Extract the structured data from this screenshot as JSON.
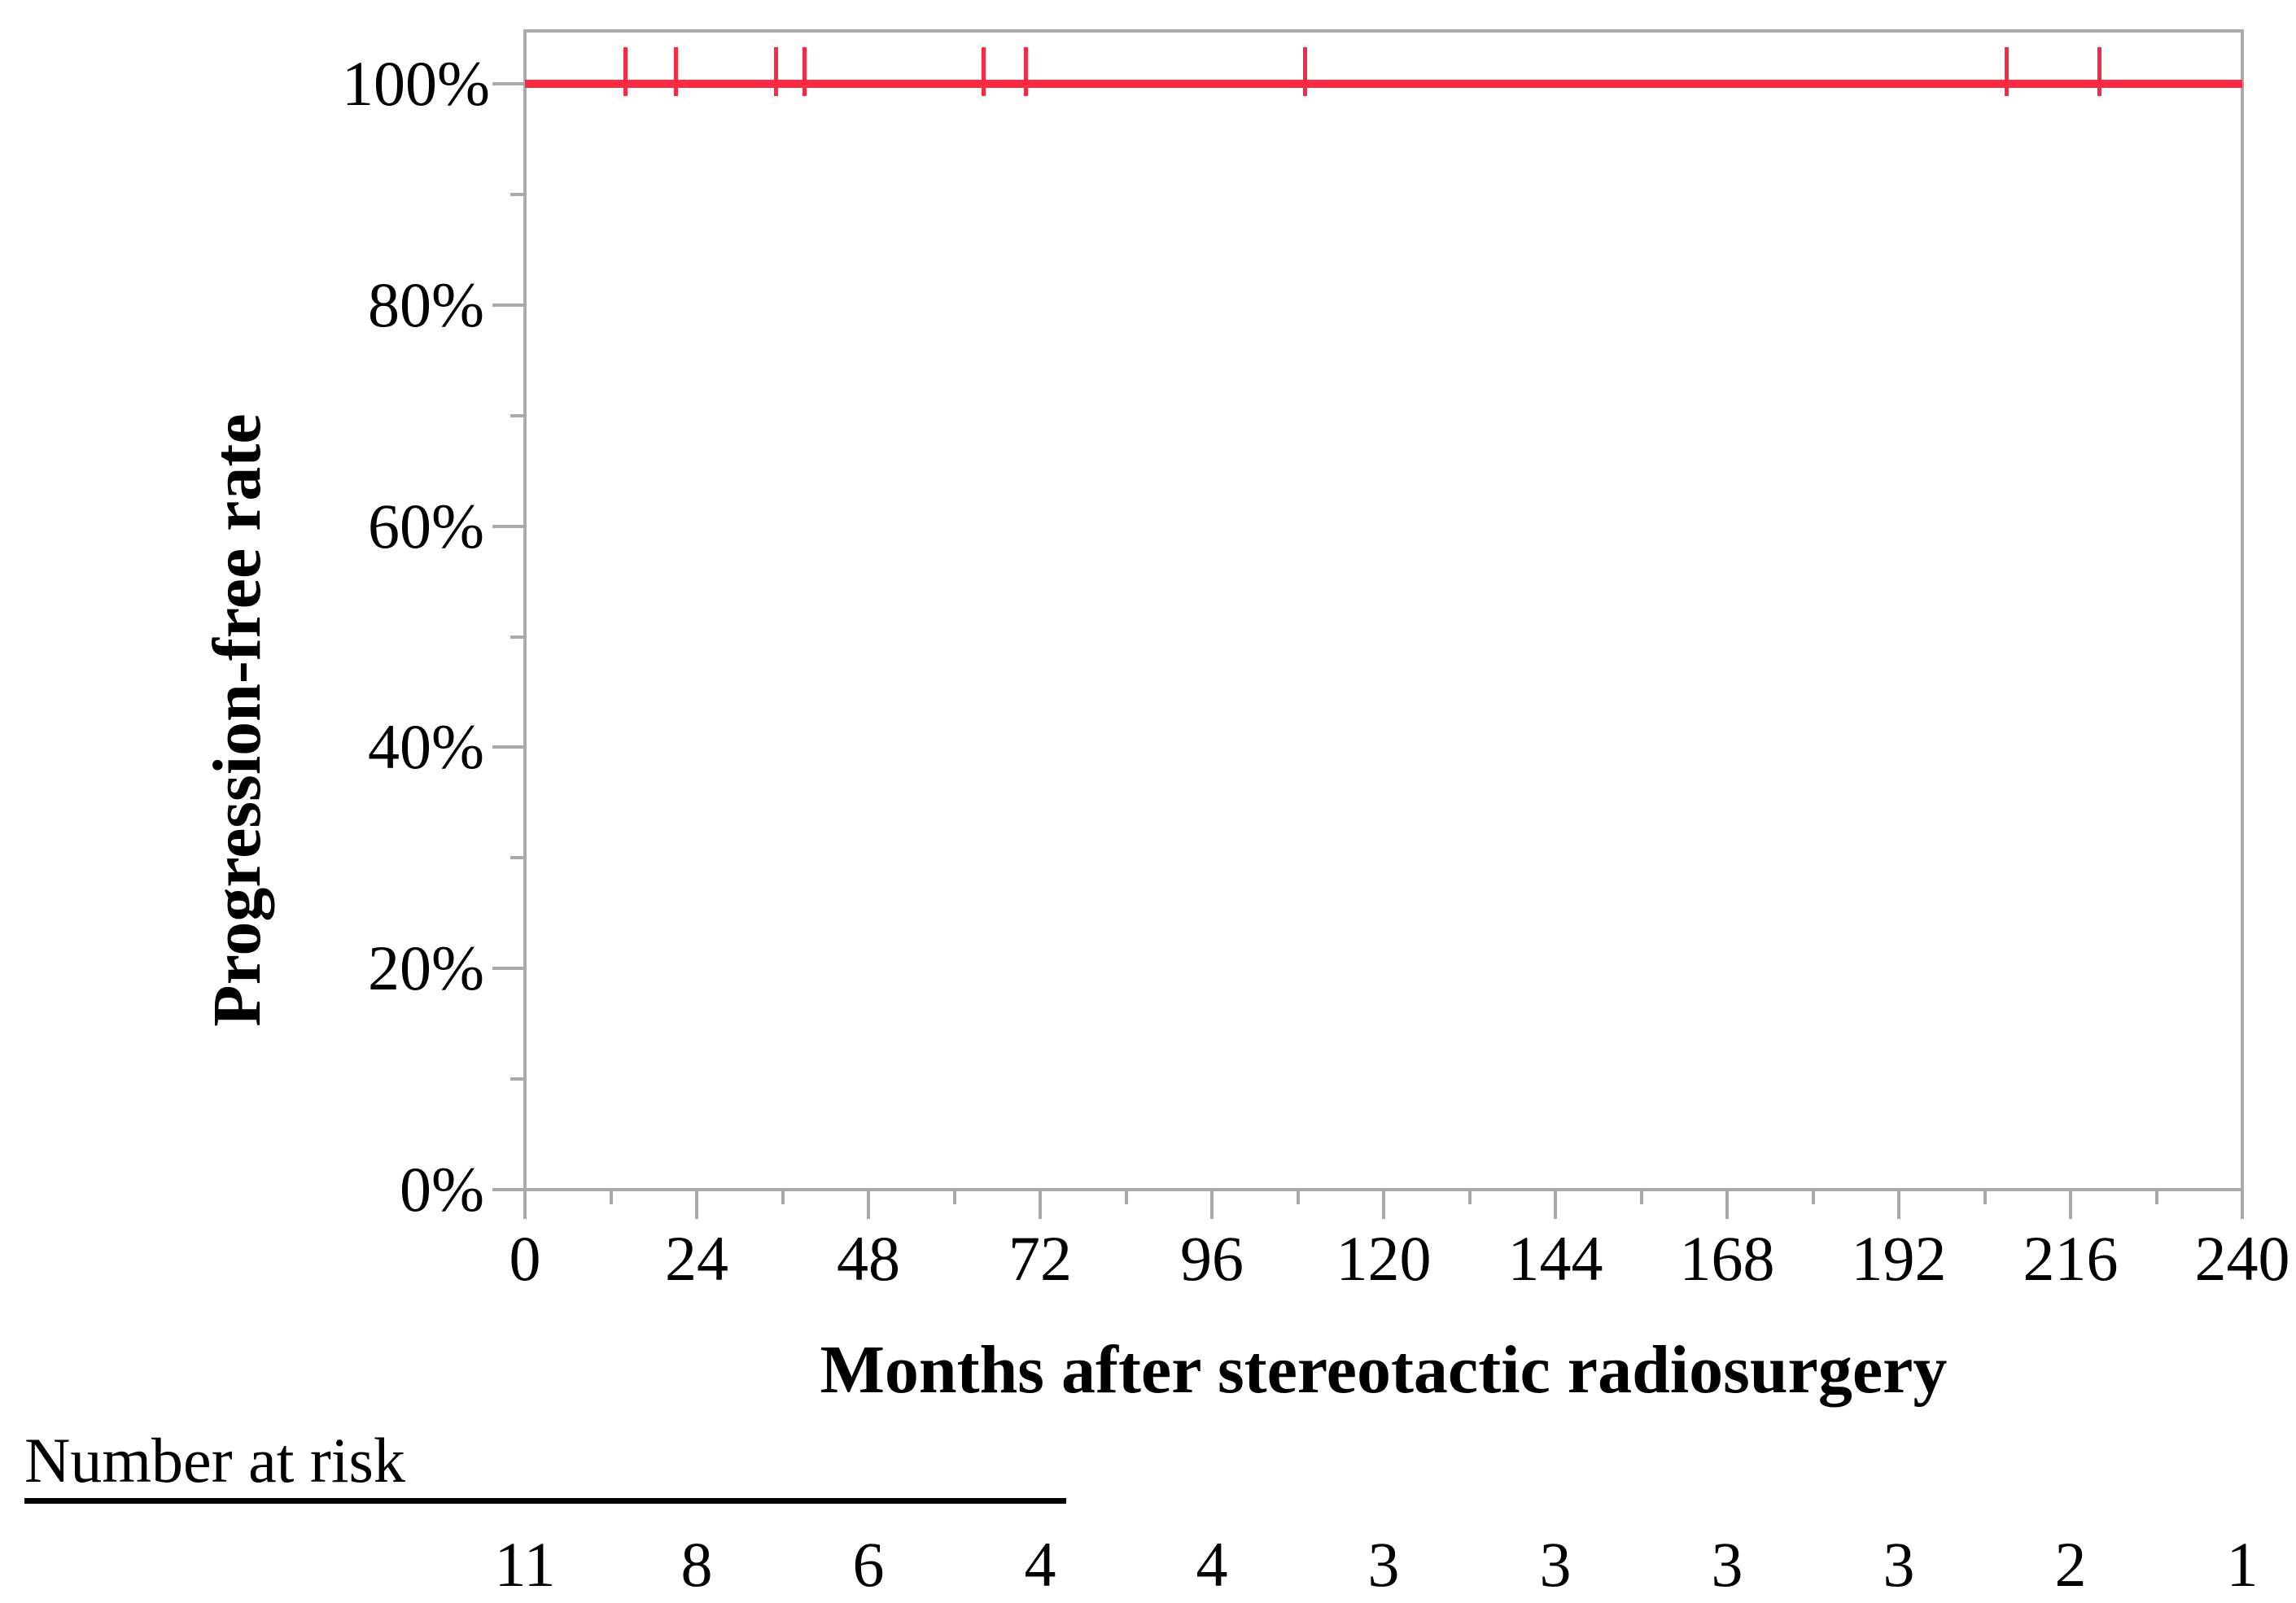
{
  "chart_data": {
    "type": "line",
    "subtype": "kaplan-meier-survival",
    "title": "",
    "xlabel": "Months after stereotactic radiosurgery",
    "ylabel": "Progression-free rate",
    "xlim": [
      0,
      240
    ],
    "ylim_percent": [
      0,
      104.8
    ],
    "grid": false,
    "legend_position": "none",
    "axis_color": "#A9A9A9",
    "text_color": "#000000",
    "x_axis": {
      "ticks": [
        0,
        24,
        48,
        72,
        96,
        120,
        144,
        168,
        192,
        216,
        240
      ],
      "tick_labels": [
        "0",
        "24",
        "48",
        "72",
        "96",
        "120",
        "144",
        "168",
        "192",
        "216",
        "240"
      ],
      "minor_ticks": [
        12,
        36,
        60,
        84,
        108,
        132,
        156,
        180,
        204,
        228
      ]
    },
    "y_axis": {
      "ticks_percent": [
        0,
        20,
        40,
        60,
        80,
        100
      ],
      "tick_labels": [
        "0%",
        "20%",
        "40%",
        "60%",
        "80%",
        "100%"
      ],
      "minor_ticks_percent": [
        10,
        30,
        50,
        70,
        90
      ]
    },
    "series": [
      {
        "name": "Progression-free rate",
        "color": "#FB2A43",
        "points_percent": [
          {
            "x": 0,
            "y": 100
          },
          {
            "x": 240,
            "y": 100
          }
        ],
        "censor_times_months": [
          14,
          21,
          35,
          39,
          64,
          70,
          109,
          207,
          220
        ]
      }
    ],
    "number_at_risk": {
      "label": "Number at risk",
      "times": [
        0,
        24,
        48,
        72,
        96,
        120,
        144,
        168,
        192,
        216,
        240
      ],
      "counts": [
        "11",
        "8",
        "6",
        "4",
        "4",
        "3",
        "3",
        "3",
        "3",
        "2",
        "1"
      ]
    }
  }
}
